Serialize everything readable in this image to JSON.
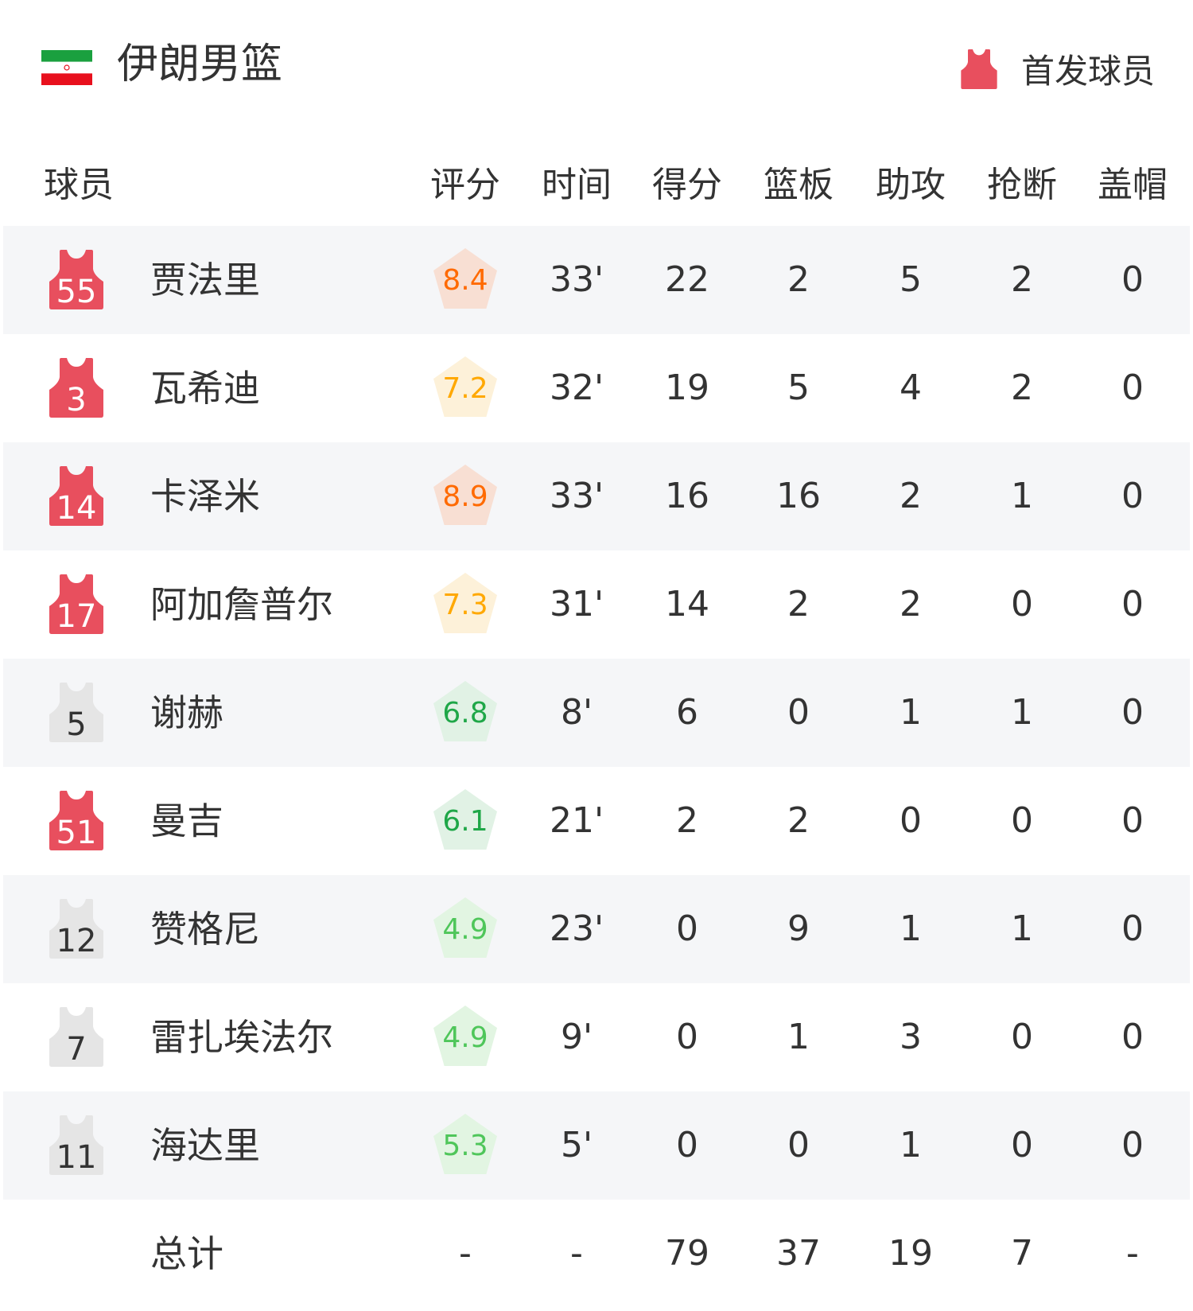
{
  "header": {
    "team_name": "伊朗男篮",
    "flag_icon": "iran-flag",
    "starter_legend": "首发球员",
    "starter_color": "#e84f5e",
    "bench_color": "#e5e5e5"
  },
  "columns": {
    "player": "球员",
    "stats": [
      "评分",
      "时间",
      "得分",
      "篮板",
      "助攻",
      "抢断",
      "盖帽"
    ]
  },
  "players": [
    {
      "number": "55",
      "name": "贾法里",
      "starter": true,
      "rating": "8.4",
      "stats": [
        "33'",
        "22",
        "2",
        "5",
        "2",
        "0"
      ]
    },
    {
      "number": "3",
      "name": "瓦希迪",
      "starter": true,
      "rating": "7.2",
      "stats": [
        "32'",
        "19",
        "5",
        "4",
        "2",
        "0"
      ]
    },
    {
      "number": "14",
      "name": "卡泽米",
      "starter": true,
      "rating": "8.9",
      "stats": [
        "33'",
        "16",
        "16",
        "2",
        "1",
        "0"
      ]
    },
    {
      "number": "17",
      "name": "阿加詹普尔",
      "starter": true,
      "rating": "7.3",
      "stats": [
        "31'",
        "14",
        "2",
        "2",
        "0",
        "0"
      ]
    },
    {
      "number": "5",
      "name": "谢赫",
      "starter": false,
      "rating": "6.8",
      "stats": [
        "8'",
        "6",
        "0",
        "1",
        "1",
        "0"
      ]
    },
    {
      "number": "51",
      "name": "曼吉",
      "starter": true,
      "rating": "6.1",
      "stats": [
        "21'",
        "2",
        "2",
        "0",
        "0",
        "0"
      ]
    },
    {
      "number": "12",
      "name": "赞格尼",
      "starter": false,
      "rating": "4.9",
      "stats": [
        "23'",
        "0",
        "9",
        "1",
        "1",
        "0"
      ]
    },
    {
      "number": "7",
      "name": "雷扎埃法尔",
      "starter": false,
      "rating": "4.9",
      "stats": [
        "9'",
        "0",
        "1",
        "3",
        "0",
        "0"
      ]
    },
    {
      "number": "11",
      "name": "海达里",
      "starter": false,
      "rating": "5.3",
      "stats": [
        "5'",
        "0",
        "0",
        "1",
        "0",
        "0"
      ]
    }
  ],
  "totals": {
    "label": "总计",
    "values": [
      "-",
      "-",
      "79",
      "37",
      "19",
      "7",
      "-"
    ]
  },
  "rating_colors": {
    "high": {
      "text": "#ff6a00",
      "bg": "#f8dfd3"
    },
    "good": {
      "text": "#ffa800",
      "bg": "#fdf1d9"
    },
    "mid": {
      "text": "#1fa748",
      "bg": "#e1f2e5"
    },
    "low": {
      "text": "#4fc65a",
      "bg": "#e2f5e2"
    }
  }
}
